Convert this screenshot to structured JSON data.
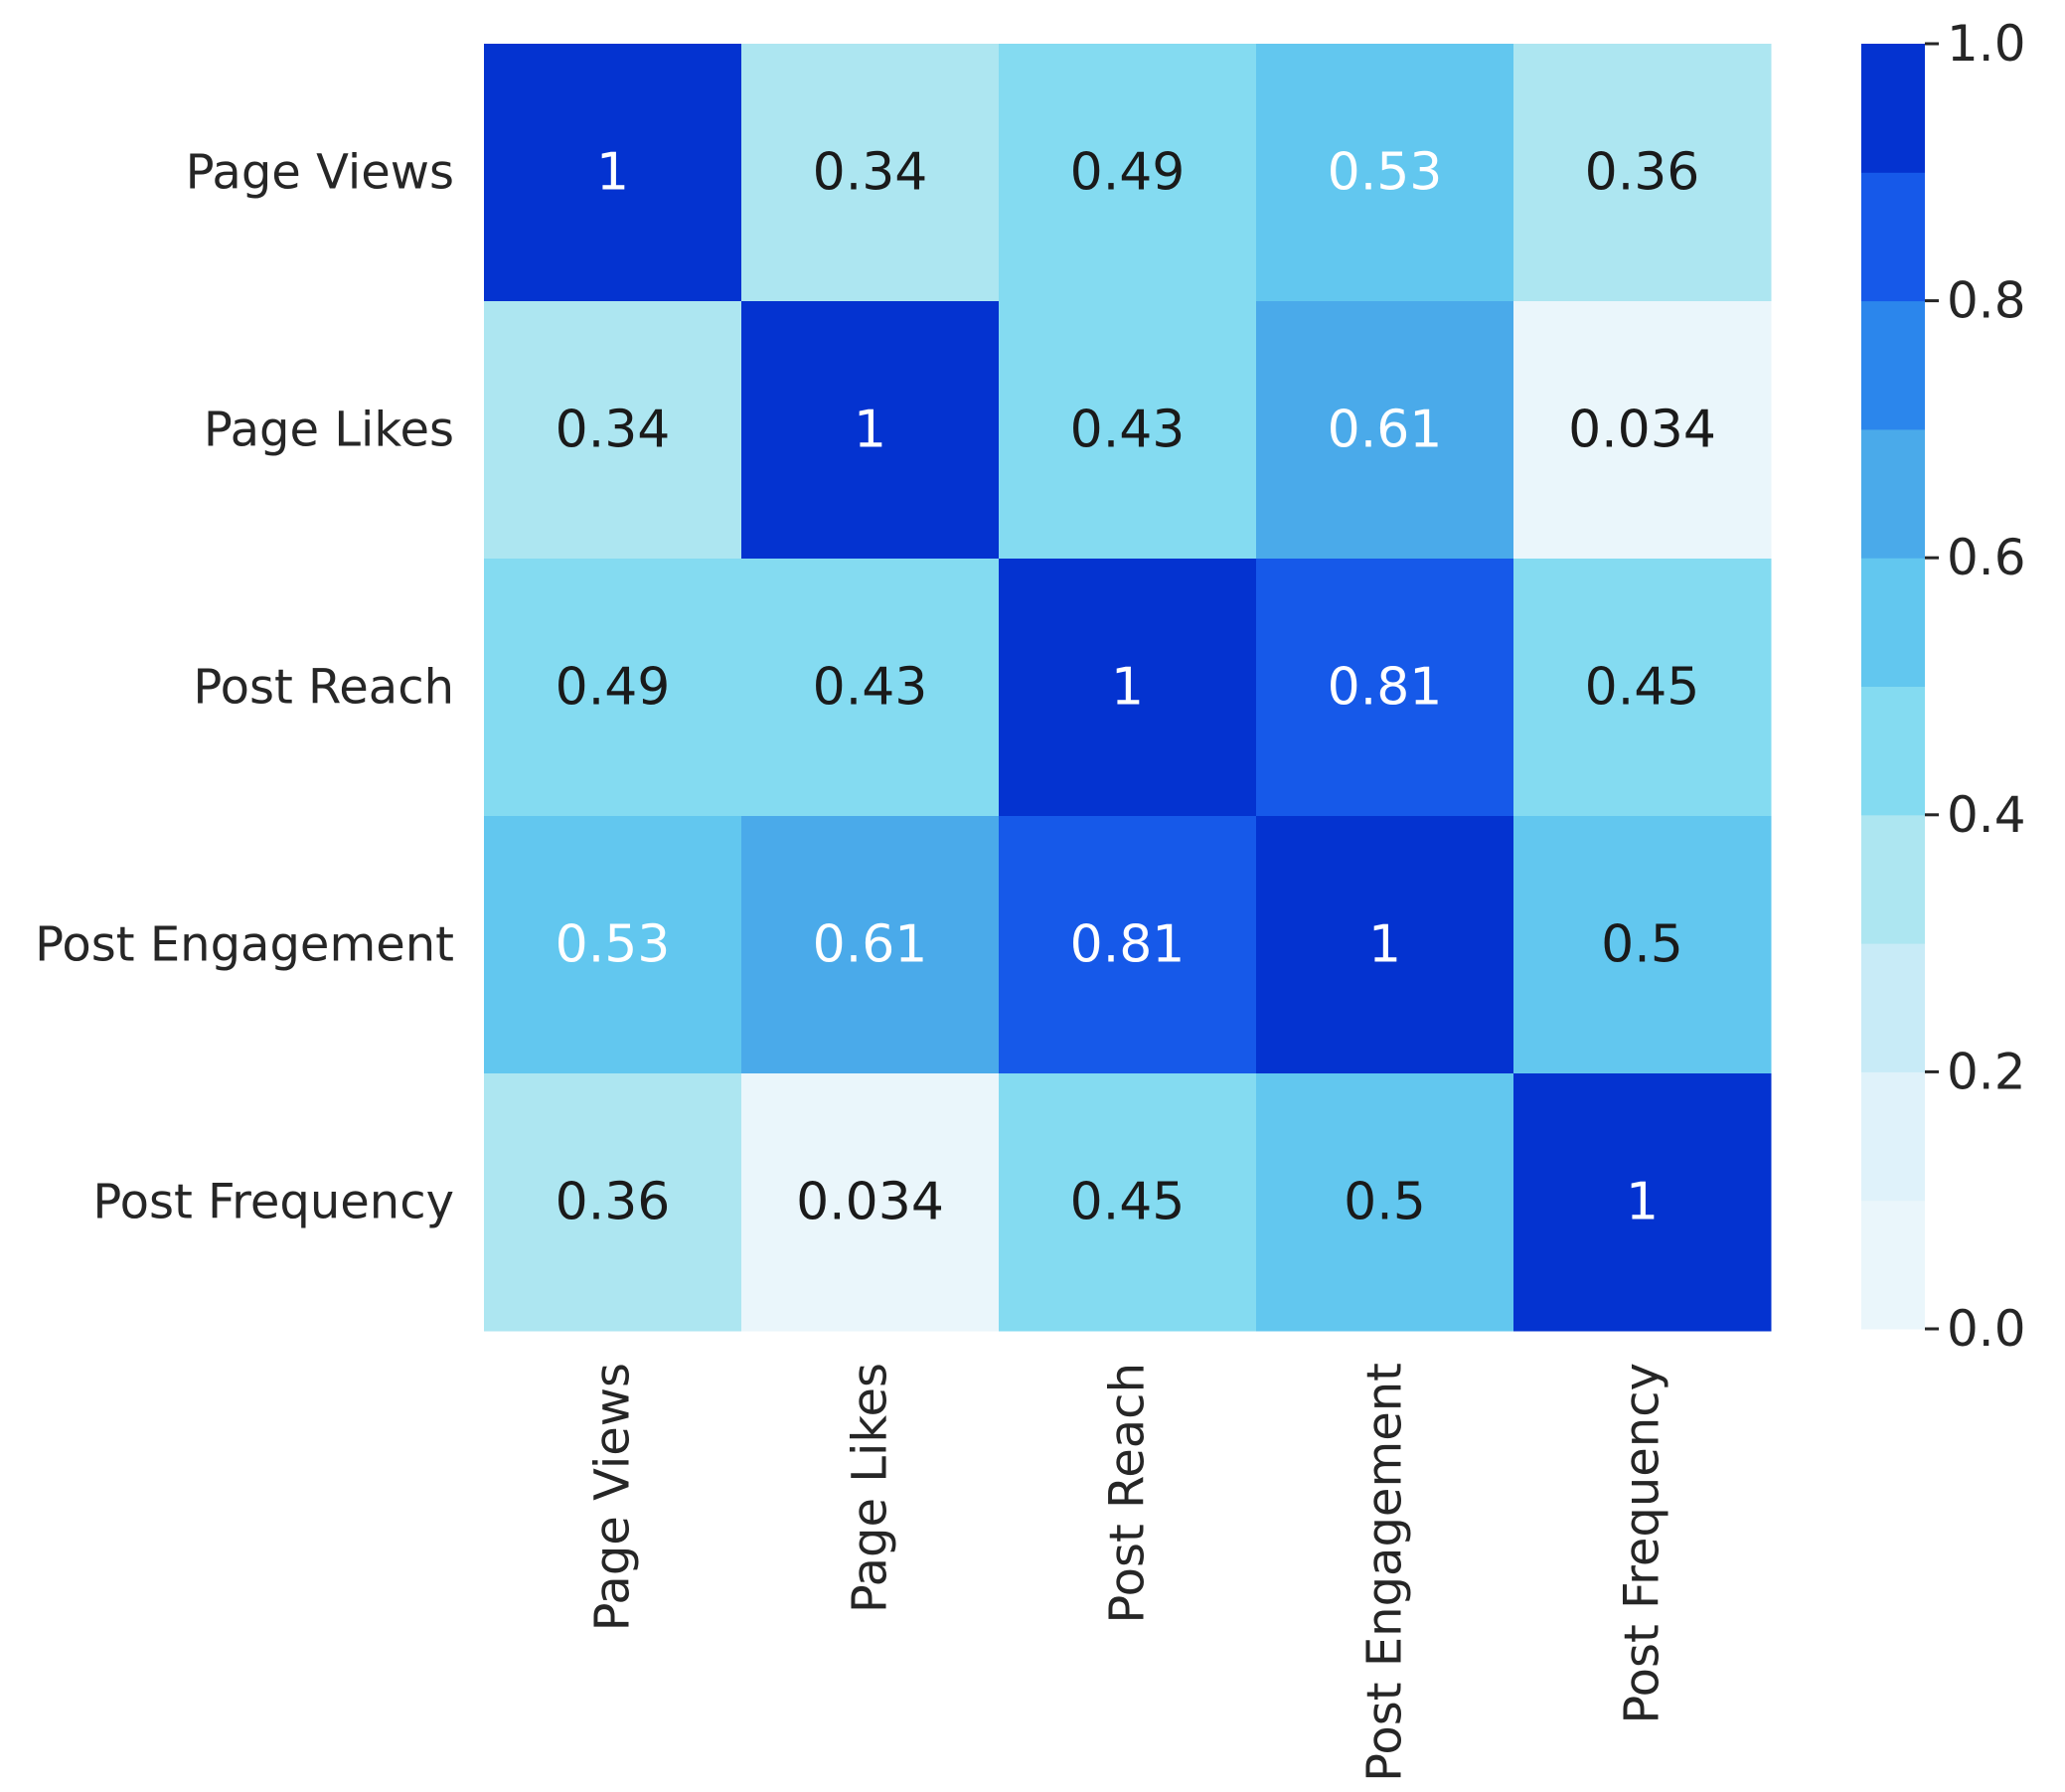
{
  "chart_data": {
    "type": "heatmap",
    "title": "",
    "xlabel": "",
    "ylabel": "",
    "row_labels": [
      "Page Views",
      "Page Likes",
      "Post Reach",
      "Post Engagement",
      "Post Frequency"
    ],
    "col_labels": [
      "Page Views",
      "Page Likes",
      "Post Reach",
      "Post Engagement",
      "Post Frequency"
    ],
    "values": [
      [
        1,
        0.34,
        0.49,
        0.53,
        0.36
      ],
      [
        0.34,
        1,
        0.43,
        0.61,
        0.034
      ],
      [
        0.49,
        0.43,
        1,
        0.81,
        0.45
      ],
      [
        0.53,
        0.61,
        0.81,
        1,
        0.5
      ],
      [
        0.36,
        0.034,
        0.45,
        0.5,
        1
      ]
    ],
    "cell_labels": [
      [
        "1",
        "0.34",
        "0.49",
        "0.53",
        "0.36"
      ],
      [
        "0.34",
        "1",
        "0.43",
        "0.61",
        "0.034"
      ],
      [
        "0.49",
        "0.43",
        "1",
        "0.81",
        "0.45"
      ],
      [
        "0.53",
        "0.61",
        "0.81",
        "1",
        "0.5"
      ],
      [
        "0.36",
        "0.034",
        "0.45",
        "0.5",
        "1"
      ]
    ],
    "colorbar": {
      "range": [
        0.0,
        1.0
      ],
      "ticks": [
        "0.0",
        "0.2",
        "0.4",
        "0.6",
        "0.8",
        "1.0"
      ],
      "tick_values": [
        0.0,
        0.2,
        0.4,
        0.6,
        0.8,
        1.0
      ],
      "bins": 10,
      "colors": [
        "#eaf6fb",
        "#dff2fa",
        "#c8ebf7",
        "#ade6f1",
        "#84dbf1",
        "#62c7ef",
        "#4aaaea",
        "#2b86ec",
        "#1659e9",
        "#0433d0"
      ]
    },
    "dark_text_color": "#1a1a1a",
    "light_text_color": "#ffffff"
  }
}
